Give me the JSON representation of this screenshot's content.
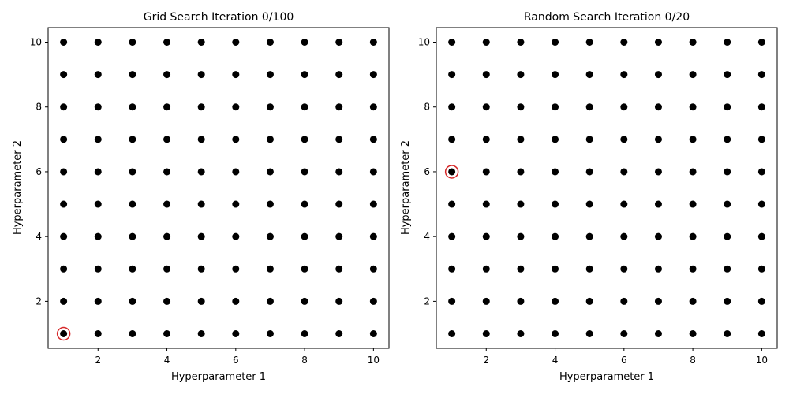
{
  "chart_data": [
    {
      "type": "scatter",
      "title": "Grid Search Iteration 0/100",
      "xlabel": "Hyperparameter 1",
      "ylabel": "Hyperparameter 2",
      "xlim": [
        0.55,
        10.45
      ],
      "ylim": [
        0.55,
        10.45
      ],
      "xticks": [
        "2",
        "4",
        "6",
        "8",
        "10"
      ],
      "yticks": [
        "2",
        "4",
        "6",
        "8",
        "10"
      ],
      "grid_x": [
        1,
        2,
        3,
        4,
        5,
        6,
        7,
        8,
        9,
        10
      ],
      "grid_y": [
        1,
        2,
        3,
        4,
        5,
        6,
        7,
        8,
        9,
        10
      ],
      "point_color": "#000000",
      "highlight": {
        "x": 1,
        "y": 1,
        "color": "#d62728"
      }
    },
    {
      "type": "scatter",
      "title": "Random Search Iteration 0/20",
      "xlabel": "Hyperparameter 1",
      "ylabel": "Hyperparameter 2",
      "xlim": [
        0.55,
        10.45
      ],
      "ylim": [
        0.55,
        10.45
      ],
      "xticks": [
        "2",
        "4",
        "6",
        "8",
        "10"
      ],
      "yticks": [
        "2",
        "4",
        "6",
        "8",
        "10"
      ],
      "grid_x": [
        1,
        2,
        3,
        4,
        5,
        6,
        7,
        8,
        9,
        10
      ],
      "grid_y": [
        1,
        2,
        3,
        4,
        5,
        6,
        7,
        8,
        9,
        10
      ],
      "point_color": "#000000",
      "highlight": {
        "x": 1,
        "y": 6,
        "color": "#d62728"
      }
    }
  ]
}
